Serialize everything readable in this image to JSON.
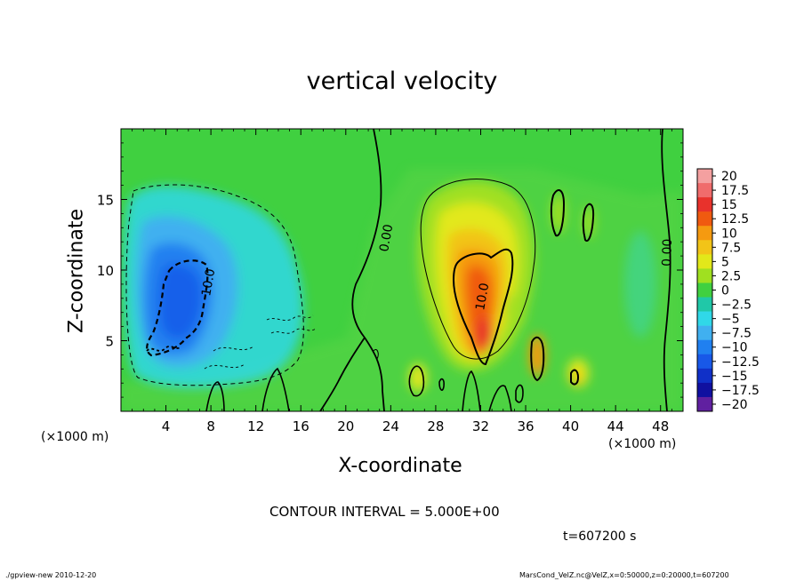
{
  "chart_data": {
    "type": "heatmap",
    "title": "vertical velocity",
    "xlabel": "X-coordinate",
    "ylabel": "Z-coordinate",
    "x_unit": "(×1000 m)",
    "x_ticks": [
      4,
      8,
      12,
      16,
      20,
      24,
      28,
      32,
      36,
      40,
      44,
      48
    ],
    "y_ticks": [
      5,
      10,
      15
    ],
    "xlim": [
      0,
      50
    ],
    "ylim": [
      0,
      20
    ],
    "colorbar": {
      "levels": [
        "20",
        "17.5",
        "15",
        "12.5",
        "10",
        "7.5",
        "5",
        "2.5",
        "0",
        "−2.5",
        "−5",
        "−7.5",
        "−10",
        "−12.5",
        "−15",
        "−17.5",
        "−20"
      ],
      "colors": [
        "#f4a0a0",
        "#f06c6c",
        "#e8322c",
        "#f05a10",
        "#f59a10",
        "#f2c418",
        "#e2e81a",
        "#a0e020",
        "#40d040",
        "#20c8a8",
        "#30d8e8",
        "#40b0f0",
        "#2080f0",
        "#1858e8",
        "#1030c8",
        "#1010a0",
        "#6020a0"
      ]
    },
    "contour_labels": [
      "0.00",
      "0.00",
      "10.0",
      "10.0"
    ],
    "contour_interval": "CONTOUR INTERVAL = 5.000E+00",
    "time": "t=607200 s",
    "features": [
      {
        "kind": "downdraft",
        "x_km": 6,
        "z_km": 8,
        "min_value": -12.5
      },
      {
        "kind": "updraft",
        "x_km": 32,
        "z_km": 8,
        "max_value": 13
      }
    ]
  },
  "footer": {
    "left": "./gpview-new  2010-12-20",
    "right": "MarsCond_VelZ.nc@VelZ,x=0:50000,z=0:20000,t=607200"
  }
}
